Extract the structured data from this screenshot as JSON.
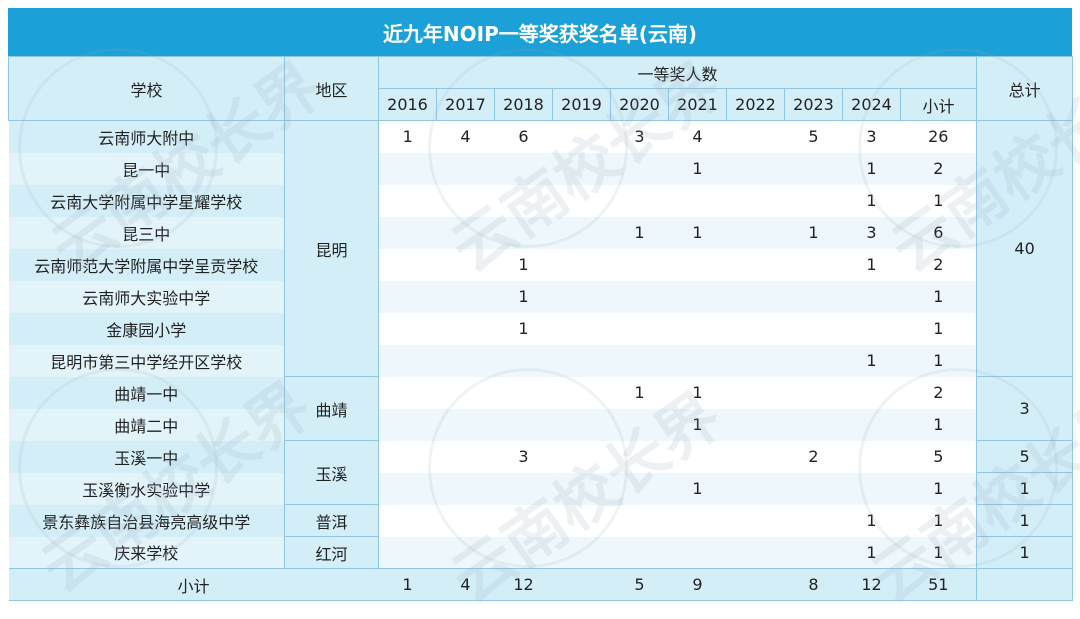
{
  "title": "近九年NOIP一等奖获奖名单(云南)",
  "headers": {
    "school": "学校",
    "region": "地区",
    "group": "一等奖人数",
    "years": [
      "2016",
      "2017",
      "2018",
      "2019",
      "2020",
      "2021",
      "2022",
      "2023",
      "2024"
    ],
    "subtotal": "小计",
    "total": "总计"
  },
  "rows": [
    {
      "school": "云南师大附中",
      "counts": [
        "1",
        "4",
        "6",
        "",
        "3",
        "4",
        "",
        "5",
        "3"
      ],
      "subtotal": "26"
    },
    {
      "school": "昆一中",
      "counts": [
        "",
        "",
        "",
        "",
        "",
        "1",
        "",
        "",
        "1"
      ],
      "subtotal": "2"
    },
    {
      "school": "云南大学附属中学星耀学校",
      "counts": [
        "",
        "",
        "",
        "",
        "",
        "",
        "",
        "",
        "1"
      ],
      "subtotal": "1"
    },
    {
      "school": "昆三中",
      "counts": [
        "",
        "",
        "",
        "",
        "1",
        "1",
        "",
        "1",
        "3"
      ],
      "subtotal": "6"
    },
    {
      "school": "云南师范大学附属中学呈贡学校",
      "counts": [
        "",
        "",
        "1",
        "",
        "",
        "",
        "",
        "",
        "1"
      ],
      "subtotal": "2"
    },
    {
      "school": "云南师大实验中学",
      "counts": [
        "",
        "",
        "1",
        "",
        "",
        "",
        "",
        "",
        ""
      ],
      "subtotal": "1"
    },
    {
      "school": "金康园小学",
      "counts": [
        "",
        "",
        "1",
        "",
        "",
        "",
        "",
        "",
        ""
      ],
      "subtotal": "1"
    },
    {
      "school": "昆明市第三中学经开区学校",
      "counts": [
        "",
        "",
        "",
        "",
        "",
        "",
        "",
        "",
        "1"
      ],
      "subtotal": "1"
    },
    {
      "school": "曲靖一中",
      "counts": [
        "",
        "",
        "",
        "",
        "1",
        "1",
        "",
        "",
        ""
      ],
      "subtotal": "2"
    },
    {
      "school": "曲靖二中",
      "counts": [
        "",
        "",
        "",
        "",
        "",
        "1",
        "",
        "",
        ""
      ],
      "subtotal": "1"
    },
    {
      "school": "玉溪一中",
      "counts": [
        "",
        "",
        "3",
        "",
        "",
        "",
        "",
        "2",
        ""
      ],
      "subtotal": "5"
    },
    {
      "school": "玉溪衡水实验中学",
      "counts": [
        "",
        "",
        "",
        "",
        "",
        "1",
        "",
        "",
        ""
      ],
      "subtotal": "1"
    },
    {
      "school": "景东彝族自治县海亮高级中学",
      "counts": [
        "",
        "",
        "",
        "",
        "",
        "",
        "",
        "",
        "1"
      ],
      "subtotal": "1"
    },
    {
      "school": "庆来学校",
      "counts": [
        "",
        "",
        "",
        "",
        "",
        "",
        "",
        "",
        "1"
      ],
      "subtotal": "1"
    }
  ],
  "regions": [
    {
      "name": "昆明",
      "rows": 8
    },
    {
      "name": "曲靖",
      "rows": 2
    },
    {
      "name": "玉溪",
      "rows": 2
    },
    {
      "name": "普洱",
      "rows": 1
    },
    {
      "name": "红河",
      "rows": 1
    }
  ],
  "totals": [
    {
      "value": "40",
      "rows": 8
    },
    {
      "value": "3",
      "rows": 2
    },
    {
      "value": "5",
      "rows": 1
    },
    {
      "value": "1",
      "rows": 1
    },
    {
      "value": "1",
      "rows": 1
    },
    {
      "value": "1",
      "rows": 1
    }
  ],
  "footer": {
    "label": "小计",
    "counts": [
      "1",
      "4",
      "12",
      "",
      "5",
      "9",
      "",
      "8",
      "12"
    ],
    "subtotal": "51",
    "total": ""
  },
  "watermark": "云南校长界",
  "colors": {
    "title_bg": "#1ba0d8",
    "header_bg": "#d4eef8",
    "border": "#8fc6e2"
  }
}
